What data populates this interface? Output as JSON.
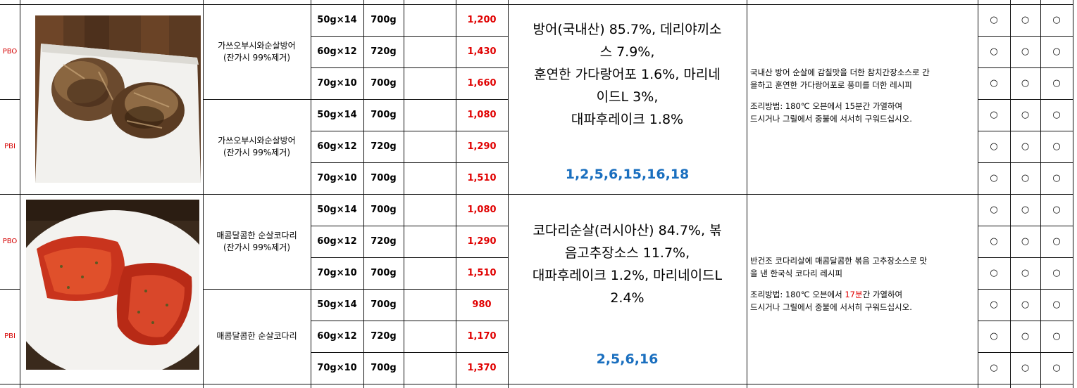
{
  "products": [
    {
      "image": "dried-pollock-fish-photo",
      "ingredients": [
        "방어(국내산) 85.7%, 데리야끼소",
        "스 7.9%,",
        "훈연한 가다랑어포 1.6%, 마리네",
        "이드L 3%,",
        "대파후레이크 1.8%"
      ],
      "allergens": "1,2,5,6,15,16,18",
      "description_lines": [
        "국내산 방어 순살에 감칠맛을 더한 참치간장소스로 간",
        "을하고 훈연한 가다랑어포로 풍미를 더한 레시피"
      ],
      "cooking_prefix": "조리방법: 180℃ 오븐에서 ",
      "cooking_time": "15분",
      "cooking_suffix": "간 가열하여",
      "cooking_line2": "드시거나 그릴에서 중불에 서서히 구워드십시오.",
      "cooking_time_highlight": false,
      "variants": [
        {
          "tag": "PBO",
          "name_line1": "가쓰오부시와순살방어",
          "name_line2": "(잔가시 99%제거)",
          "rows": [
            {
              "pack": "50g×14",
              "weight": "700g",
              "price": "1,200"
            },
            {
              "pack": "60g×12",
              "weight": "720g",
              "price": "1,430"
            },
            {
              "pack": "70g×10",
              "weight": "700g",
              "price": "1,660"
            }
          ]
        },
        {
          "tag": "PBI",
          "name_line1": "가쓰오부시와순살방어",
          "name_line2": "(잔가시 99%제거)",
          "rows": [
            {
              "pack": "50g×14",
              "weight": "700g",
              "price": "1,080"
            },
            {
              "pack": "60g×12",
              "weight": "720g",
              "price": "1,290"
            },
            {
              "pack": "70g×10",
              "weight": "700g",
              "price": "1,510"
            }
          ]
        }
      ]
    },
    {
      "image": "spicy-sweet-pollock-photo",
      "ingredients": [
        "코다리순살(러시아산) 84.7%, 볶",
        "음고추장소스 11.7%,",
        "대파후레이크 1.2%, 마리네이드L",
        "2.4%"
      ],
      "allergens": "2,5,6,16",
      "description_lines": [
        "반건조 코다리살에 매콤달콤한 볶음 고추장소스로 맛",
        "을 낸 한국식 코다리 레시피"
      ],
      "cooking_prefix": "조리방법: 180℃ 오븐에서 ",
      "cooking_time": "17분",
      "cooking_suffix": "간 가열하여",
      "cooking_line2": "드시거나 그릴에서 중불에 서서히 구워드십시오.",
      "cooking_time_highlight": true,
      "variants": [
        {
          "tag": "PBO",
          "name_line1": "매콤달콤한 순살코다리",
          "name_line2": "(잔가시 99%제거)",
          "rows": [
            {
              "pack": "50g×14",
              "weight": "700g",
              "price": "1,080"
            },
            {
              "pack": "60g×12",
              "weight": "720g",
              "price": "1,290"
            },
            {
              "pack": "70g×10",
              "weight": "700g",
              "price": "1,510"
            }
          ]
        },
        {
          "tag": "PBI",
          "name_line1": "매콤달콤한 순살코다리",
          "name_line2": "",
          "rows": [
            {
              "pack": "50g×14",
              "weight": "700g",
              "price": "980"
            },
            {
              "pack": "60g×12",
              "weight": "720g",
              "price": "1,170"
            },
            {
              "pack": "70g×10",
              "weight": "700g",
              "price": "1,370"
            }
          ]
        }
      ]
    }
  ],
  "check_mark": "○",
  "colors": {
    "price": "#e00000",
    "allergen": "#1a6fbf",
    "tag": "#d40000",
    "grid": "#111111"
  }
}
